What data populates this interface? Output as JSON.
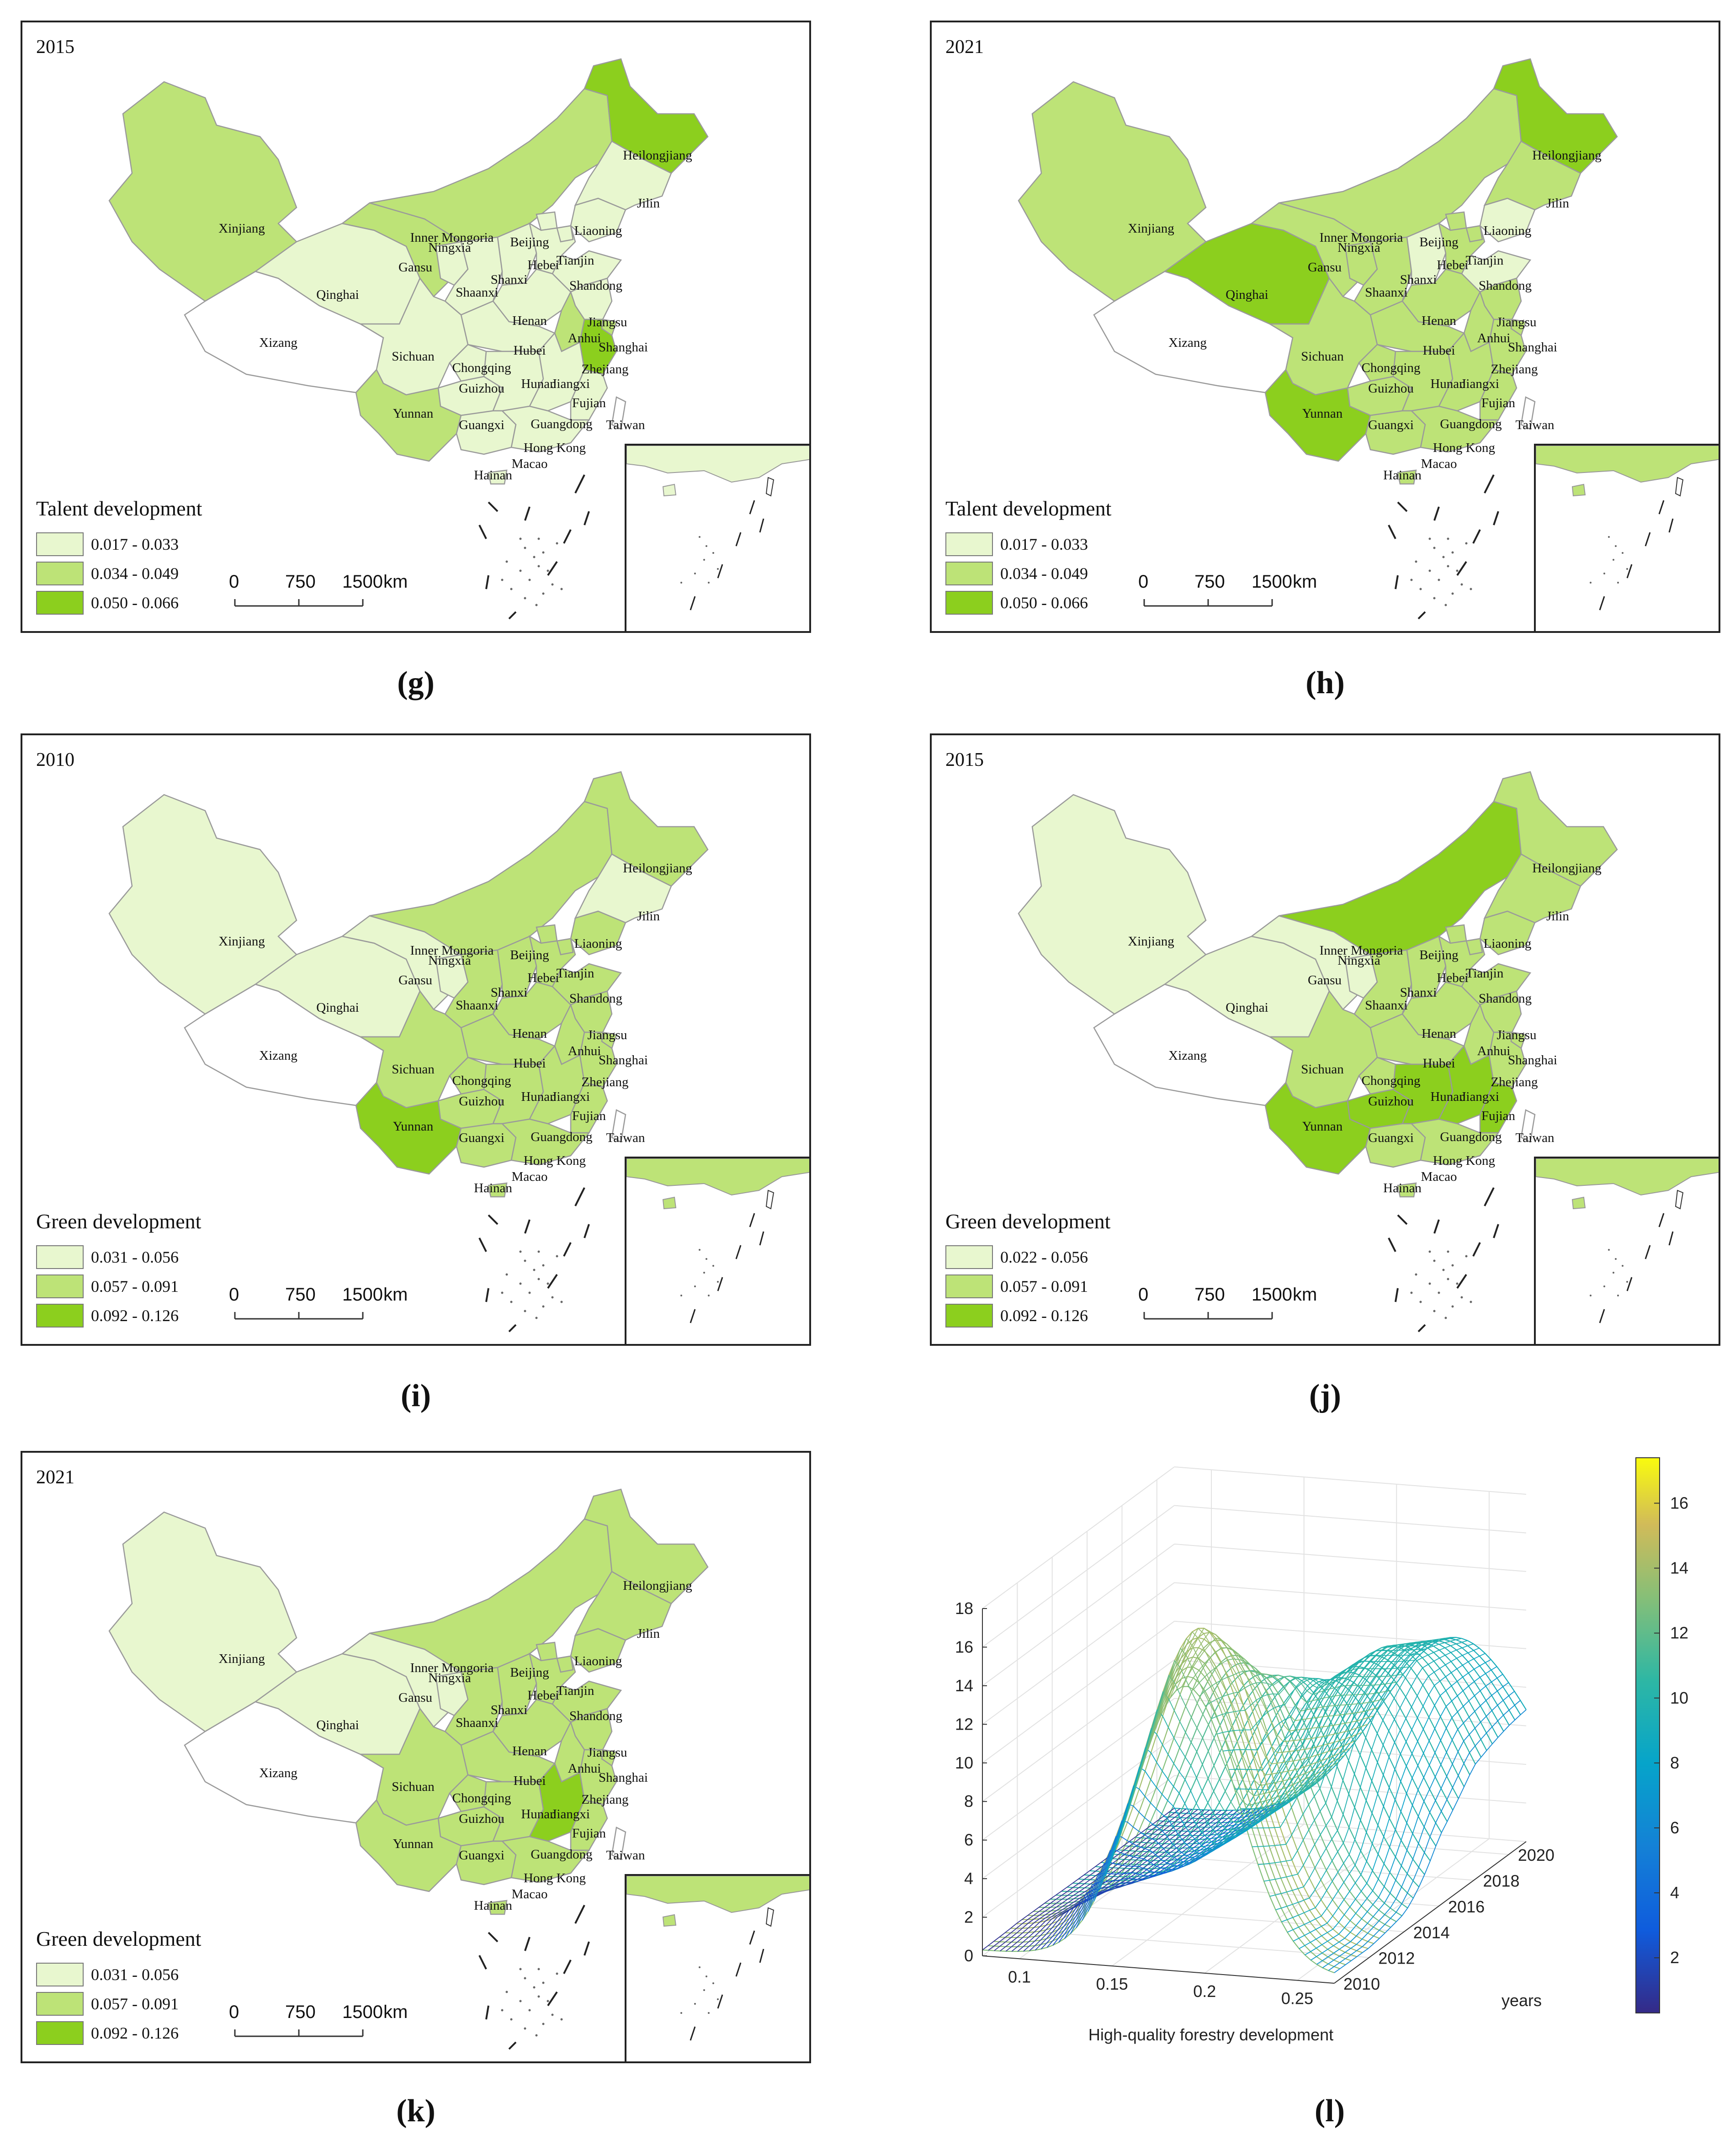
{
  "scale_bar": {
    "ticks": [
      "0",
      "750",
      "1500"
    ],
    "unit": "km"
  },
  "colors": {
    "class1": "#e8f7cf",
    "class2": "#bde377",
    "class3": "#8ccf1e",
    "blank": "#ffffff"
  },
  "place_names": [
    "Xinjiang",
    "Xizang",
    "Qinghai",
    "Gansu",
    "Inner Mongoria",
    "Ningxia",
    "Shaanxi",
    "Shanxi",
    "Beijing",
    "Hebei",
    "Tianjin",
    "Liaoning",
    "Jilin",
    "Heilongjiang",
    "Shandong",
    "Henan",
    "Jiangsu",
    "Anhui",
    "Shanghai",
    "Hubei",
    "Sichuan",
    "Chongqing",
    "Guizhou",
    "Hunan",
    "Jiangxi",
    "Zhejiang",
    "Fujian",
    "Yunnan",
    "Guangxi",
    "Guangdong",
    "Taiwan",
    "Hong Kong",
    "Macao",
    "Hainan"
  ],
  "panels": [
    {
      "id": "g",
      "caption": "(g)",
      "year": "2015",
      "legend_title": "Talent development",
      "legend": [
        "0.017 - 0.033",
        "0.034 - 0.049",
        "0.050 - 0.066"
      ],
      "classes": {
        "Xinjiang": 2,
        "Xizang": 0,
        "Qinghai": 1,
        "Gansu": 2,
        "Inner Mongoria": 2,
        "Ningxia": 1,
        "Shaanxi": 1,
        "Shanxi": 1,
        "Beijing": 1,
        "Hebei": 1,
        "Tianjin": 1,
        "Liaoning": 1,
        "Jilin": 1,
        "Heilongjiang": 3,
        "Shandong": 1,
        "Henan": 1,
        "Jiangsu": 1,
        "Anhui": 2,
        "Shanghai": 2,
        "Hubei": 1,
        "Sichuan": 1,
        "Chongqing": 1,
        "Guizhou": 1,
        "Hunan": 1,
        "Jiangxi": 1,
        "Zhejiang": 3,
        "Fujian": 1,
        "Yunnan": 2,
        "Guangxi": 1,
        "Guangdong": 1,
        "Taiwan": 0,
        "Hainan": 1,
        "SouthSea": 1
      }
    },
    {
      "id": "h",
      "caption": "(h)",
      "year": "2021",
      "legend_title": "Talent development",
      "legend": [
        "0.017 - 0.033",
        "0.034 - 0.049",
        "0.050 - 0.066"
      ],
      "classes": {
        "Xinjiang": 2,
        "Xizang": 0,
        "Qinghai": 3,
        "Gansu": 2,
        "Inner Mongoria": 2,
        "Ningxia": 2,
        "Shaanxi": 2,
        "Shanxi": 1,
        "Beijing": 2,
        "Hebei": 2,
        "Tianjin": 2,
        "Liaoning": 1,
        "Jilin": 2,
        "Heilongjiang": 3,
        "Shandong": 1,
        "Henan": 2,
        "Jiangsu": 2,
        "Anhui": 2,
        "Shanghai": 2,
        "Hubei": 2,
        "Sichuan": 2,
        "Chongqing": 2,
        "Guizhou": 2,
        "Hunan": 2,
        "Jiangxi": 2,
        "Zhejiang": 2,
        "Fujian": 2,
        "Yunnan": 3,
        "Guangxi": 2,
        "Guangdong": 2,
        "Taiwan": 0,
        "Hainan": 2,
        "SouthSea": 2
      }
    },
    {
      "id": "i",
      "caption": "(i)",
      "year": "2010",
      "legend_title": "Green development",
      "legend": [
        "0.031 - 0.056",
        "0.057 - 0.091",
        "0.092 - 0.126"
      ],
      "classes": {
        "Xinjiang": 1,
        "Xizang": 0,
        "Qinghai": 1,
        "Gansu": 1,
        "Inner Mongoria": 2,
        "Ningxia": 1,
        "Shaanxi": 2,
        "Shanxi": 2,
        "Beijing": 2,
        "Hebei": 2,
        "Tianjin": 2,
        "Liaoning": 2,
        "Jilin": 1,
        "Heilongjiang": 2,
        "Shandong": 2,
        "Henan": 2,
        "Jiangsu": 2,
        "Anhui": 2,
        "Shanghai": 2,
        "Hubei": 2,
        "Sichuan": 2,
        "Chongqing": 2,
        "Guizhou": 2,
        "Hunan": 2,
        "Jiangxi": 2,
        "Zhejiang": 2,
        "Fujian": 2,
        "Yunnan": 3,
        "Guangxi": 2,
        "Guangdong": 2,
        "Taiwan": 0,
        "Hainan": 2,
        "SouthSea": 2
      }
    },
    {
      "id": "j",
      "caption": "(j)",
      "year": "2015",
      "legend_title": "Green development",
      "legend": [
        "0.022 - 0.056",
        "0.057 - 0.091",
        "0.092 - 0.126"
      ],
      "classes": {
        "Xinjiang": 1,
        "Xizang": 0,
        "Qinghai": 1,
        "Gansu": 1,
        "Inner Mongoria": 3,
        "Ningxia": 1,
        "Shaanxi": 2,
        "Shanxi": 2,
        "Beijing": 2,
        "Hebei": 2,
        "Tianjin": 2,
        "Liaoning": 2,
        "Jilin": 2,
        "Heilongjiang": 2,
        "Shandong": 2,
        "Henan": 2,
        "Jiangsu": 2,
        "Anhui": 2,
        "Shanghai": 2,
        "Hubei": 2,
        "Sichuan": 2,
        "Chongqing": 2,
        "Guizhou": 3,
        "Hunan": 3,
        "Jiangxi": 3,
        "Zhejiang": 2,
        "Fujian": 3,
        "Yunnan": 3,
        "Guangxi": 2,
        "Guangdong": 2,
        "Taiwan": 0,
        "Hainan": 2,
        "SouthSea": 2
      }
    },
    {
      "id": "k",
      "caption": "(k)",
      "year": "2021",
      "legend_title": "Green development",
      "legend": [
        "0.031 - 0.056",
        "0.057 - 0.091",
        "0.092 - 0.126"
      ],
      "classes": {
        "Xinjiang": 1,
        "Xizang": 0,
        "Qinghai": 1,
        "Gansu": 1,
        "Inner Mongoria": 2,
        "Ningxia": 1,
        "Shaanxi": 2,
        "Shanxi": 2,
        "Beijing": 2,
        "Hebei": 2,
        "Tianjin": 2,
        "Liaoning": 2,
        "Jilin": 2,
        "Heilongjiang": 2,
        "Shandong": 2,
        "Henan": 2,
        "Jiangsu": 2,
        "Anhui": 2,
        "Shanghai": 2,
        "Hubei": 2,
        "Sichuan": 2,
        "Chongqing": 2,
        "Guizhou": 2,
        "Hunan": 2,
        "Jiangxi": 3,
        "Zhejiang": 2,
        "Fujian": 2,
        "Yunnan": 2,
        "Guangxi": 2,
        "Guangdong": 2,
        "Taiwan": 0,
        "Hainan": 2,
        "SouthSea": 2
      }
    }
  ],
  "chart_data": {
    "caption": "(l)",
    "type": "3d-surface",
    "xlabel": "High-quality forestry development",
    "ylabel": "years",
    "x_ticks": [
      "0.1",
      "0.15",
      "0.2",
      "0.25"
    ],
    "y_ticks": [
      "2010",
      "2012",
      "2014",
      "2016",
      "2018",
      "2020"
    ],
    "z_ticks": [
      "0",
      "2",
      "4",
      "6",
      "8",
      "10",
      "12",
      "14",
      "16",
      "18"
    ],
    "colorbar_ticks": [
      "2",
      "4",
      "6",
      "8",
      "10",
      "12",
      "14",
      "16"
    ],
    "xlim": [
      0.08,
      0.27
    ],
    "ylim": [
      2010,
      2021
    ],
    "zlim": [
      0,
      18
    ],
    "colorbar_range": [
      0.3,
      17.4
    ],
    "surface": [
      {
        "year": 2010,
        "peak_x": 0.19,
        "peak_z": 14.5
      },
      {
        "year": 2012,
        "peak_x": 0.18,
        "peak_z": 16.2
      },
      {
        "year": 2014,
        "peak_x": 0.19,
        "peak_z": 12.5
      },
      {
        "year": 2016,
        "peak_x": 0.215,
        "peak_z": 11.0
      },
      {
        "year": 2018,
        "peak_x": 0.225,
        "peak_z": 11.5
      },
      {
        "year": 2020,
        "peak_x": 0.23,
        "peak_z": 10.5
      },
      {
        "year": 2021,
        "peak_x": 0.232,
        "peak_z": 10.0
      }
    ]
  }
}
